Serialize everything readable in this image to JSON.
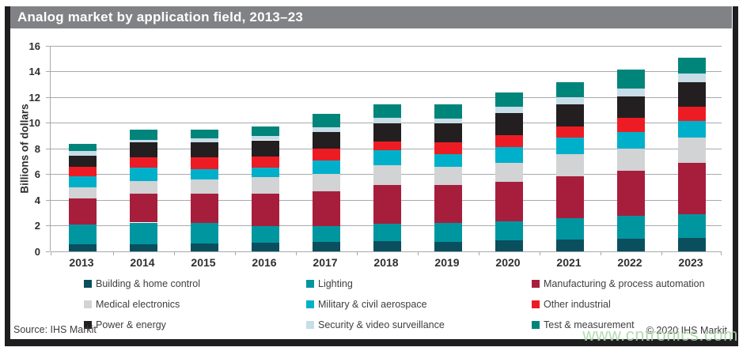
{
  "title_bar": {
    "title": "Analog market by application field, 2013–23"
  },
  "footer": {
    "source": "Source: IHS Markit",
    "copyright": "© 2020 IHS Markit",
    "watermark": "www.cntronics.com"
  },
  "colors": {
    "title_bar_bg": "#818285",
    "frame": "#1e1e20",
    "gridline": "#a7a9ac",
    "axis_text": "#2f2f31",
    "watermark": "#a8d6a4"
  },
  "chart_data": {
    "type": "bar",
    "stacked": true,
    "title": "Analog market by application field, 2013–23",
    "xlabel": "",
    "ylabel": "Billions of dollars",
    "ylim": [
      0,
      16
    ],
    "ytick_step": 2,
    "grid": true,
    "legend_position": "bottom",
    "categories": [
      "2013",
      "2014",
      "2015",
      "2016",
      "2017",
      "2018",
      "2019",
      "2020",
      "2021",
      "2022",
      "2023"
    ],
    "series": [
      {
        "name": "Building & home control",
        "color": "#0a4f5e",
        "values": [
          0.55,
          0.55,
          0.6,
          0.7,
          0.75,
          0.8,
          0.75,
          0.85,
          0.95,
          1.0,
          1.05
        ]
      },
      {
        "name": "Lighting",
        "color": "#0096a0",
        "values": [
          1.55,
          1.7,
          1.6,
          1.3,
          1.25,
          1.35,
          1.45,
          1.5,
          1.65,
          1.75,
          1.85
        ]
      },
      {
        "name": "Manufacturing & process automation",
        "color": "#a71e3d",
        "values": [
          2.05,
          2.25,
          2.3,
          2.5,
          2.7,
          3.0,
          2.95,
          3.05,
          3.25,
          3.55,
          4.0
        ]
      },
      {
        "name": "Medical electronics",
        "color": "#d1d3d4",
        "values": [
          0.85,
          1.0,
          1.1,
          1.3,
          1.35,
          1.55,
          1.45,
          1.5,
          1.7,
          1.7,
          1.95
        ]
      },
      {
        "name": "Military & civil aerospace",
        "color": "#00b0ca",
        "values": [
          0.85,
          1.0,
          0.8,
          0.75,
          1.0,
          1.2,
          0.95,
          1.25,
          1.3,
          1.3,
          1.3
        ]
      },
      {
        "name": "Other industrial",
        "color": "#ed1c24",
        "values": [
          0.75,
          0.8,
          0.9,
          0.85,
          0.95,
          0.65,
          0.95,
          0.9,
          0.9,
          1.1,
          1.1
        ]
      },
      {
        "name": "Power & energy",
        "color": "#231f20",
        "values": [
          0.85,
          1.2,
          1.2,
          1.25,
          1.3,
          1.45,
          1.5,
          1.75,
          1.7,
          1.65,
          1.95
        ]
      },
      {
        "name": "Security & video surveillance",
        "color": "#c7dde8",
        "values": [
          0.35,
          0.2,
          0.3,
          0.35,
          0.35,
          0.4,
          0.35,
          0.45,
          0.55,
          0.65,
          0.65
        ]
      },
      {
        "name": "Test & measurement",
        "color": "#00857b",
        "values": [
          0.6,
          0.75,
          0.65,
          0.7,
          1.05,
          1.05,
          1.1,
          1.1,
          1.2,
          1.45,
          1.2
        ]
      }
    ]
  }
}
